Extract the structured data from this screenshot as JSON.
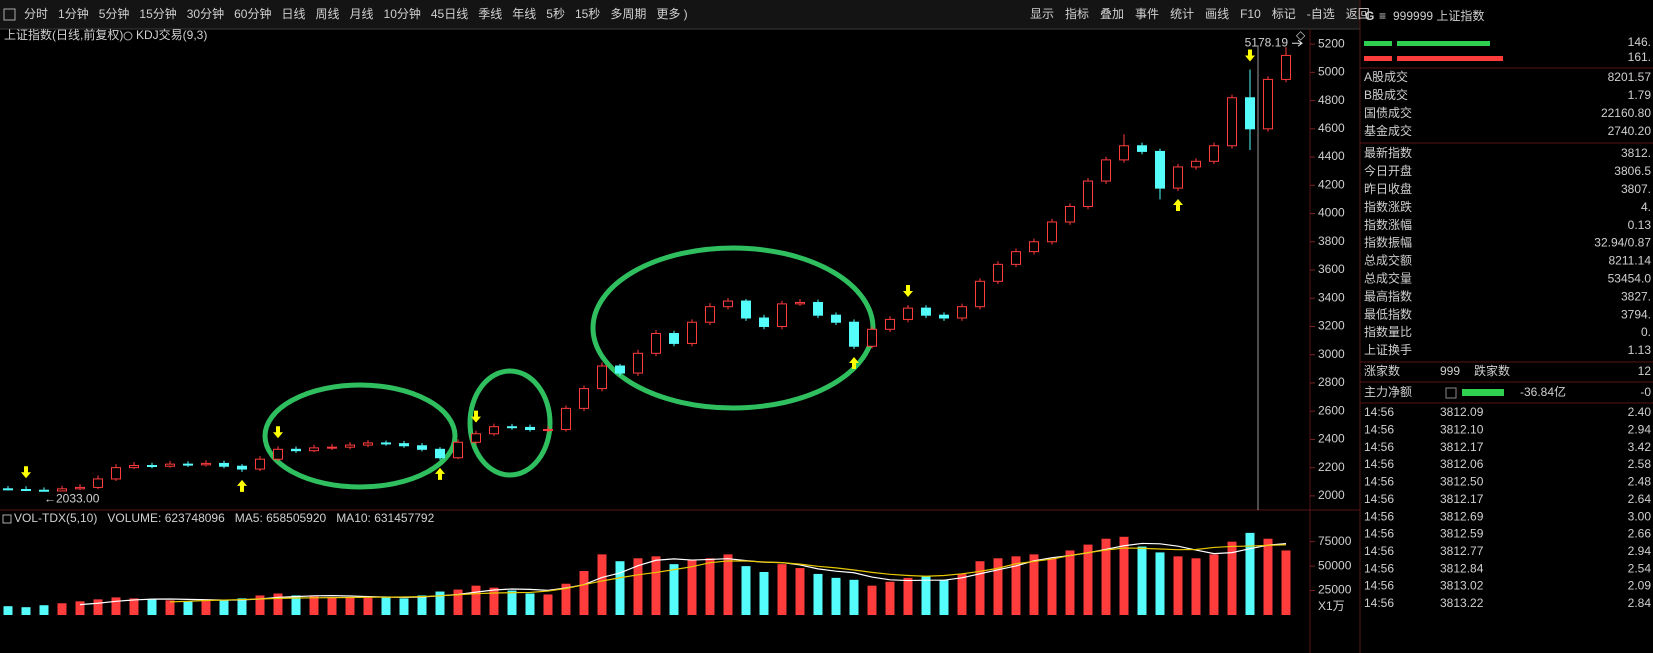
{
  "toolbar": {
    "left": [
      "分时",
      "1分钟",
      "5分钟",
      "15分钟",
      "30分钟",
      "60分钟",
      "日线",
      "周线",
      "月线",
      "10分钟",
      "45日线",
      "季线",
      "年线",
      "5秒",
      "15秒",
      "多周期",
      "更多 )"
    ],
    "active": 6,
    "right": [
      "显示",
      "指标",
      "叠加",
      "事件",
      "统计",
      "画线",
      "F10",
      "标记",
      "-自选",
      "返回"
    ]
  },
  "chart_data": {
    "type": "candlestick",
    "title": "上证指数(日线,前复权)",
    "indicator": "KDJ交易(9,3)",
    "open": [
      2050,
      2045,
      2040,
      2035,
      2050,
      2060,
      2120,
      2200,
      2215,
      2210,
      2225,
      2220,
      2230,
      2210,
      2190,
      2260,
      2330,
      2320,
      2340,
      2345,
      2360,
      2375,
      2370,
      2355,
      2330,
      2270,
      2380,
      2440,
      2490,
      2485,
      2470,
      2470,
      2620,
      2760,
      2920,
      2870,
      3010,
      3150,
      3080,
      3230,
      3340,
      3380,
      3260,
      3200,
      3360,
      3370,
      3280,
      3230,
      3060,
      3180,
      3250,
      3330,
      3280,
      3260,
      3340,
      3520,
      3640,
      3730,
      3800,
      3940,
      4050,
      4230,
      4380,
      4480,
      4440,
      4180,
      4330,
      4370,
      4480,
      4820,
      4600,
      4950
    ],
    "high": [
      2070,
      2068,
      2060,
      2072,
      2082,
      2145,
      2225,
      2240,
      2235,
      2248,
      2245,
      2252,
      2250,
      2225,
      2282,
      2352,
      2350,
      2362,
      2368,
      2382,
      2396,
      2392,
      2390,
      2375,
      2345,
      2400,
      2462,
      2512,
      2510,
      2505,
      2495,
      2640,
      2782,
      2945,
      2935,
      3035,
      3175,
      3170,
      3250,
      3365,
      3402,
      3395,
      3282,
      3382,
      3394,
      3390,
      3300,
      3250,
      3200,
      3272,
      3352,
      3350,
      3300,
      3362,
      3542,
      3662,
      3752,
      3822,
      3962,
      4072,
      4252,
      4402,
      4562,
      4502,
      4460,
      4352,
      4392,
      4502,
      4842,
      5020,
      4972,
      5178.19
    ],
    "low": [
      2038,
      2036,
      2033,
      2038,
      2042,
      2048,
      2105,
      2190,
      2195,
      2200,
      2205,
      2208,
      2195,
      2170,
      2175,
      2245,
      2305,
      2310,
      2325,
      2330,
      2345,
      2355,
      2340,
      2315,
      2255,
      2260,
      2365,
      2425,
      2468,
      2455,
      2450,
      2455,
      2600,
      2740,
      2850,
      2850,
      2990,
      3060,
      3060,
      3210,
      3320,
      3240,
      3180,
      3180,
      3345,
      3260,
      3210,
      3040,
      3045,
      3160,
      3230,
      3260,
      3240,
      3240,
      3320,
      3500,
      3620,
      3710,
      3780,
      3920,
      4030,
      4210,
      4360,
      4420,
      4100,
      4160,
      4310,
      4350,
      4460,
      4450,
      4580,
      4930
    ],
    "close": [
      2045,
      2040,
      2035,
      2050,
      2060,
      2120,
      2200,
      2215,
      2210,
      2225,
      2220,
      2230,
      2210,
      2190,
      2260,
      2330,
      2320,
      2340,
      2345,
      2360,
      2375,
      2370,
      2355,
      2330,
      2270,
      2380,
      2440,
      2490,
      2485,
      2470,
      2470,
      2620,
      2760,
      2920,
      2870,
      3010,
      3150,
      3080,
      3230,
      3340,
      3380,
      3260,
      3200,
      3360,
      3370,
      3280,
      3230,
      3060,
      3180,
      3250,
      3330,
      3280,
      3260,
      3340,
      3520,
      3640,
      3730,
      3800,
      3940,
      4050,
      4230,
      4380,
      4480,
      4440,
      4180,
      4330,
      4370,
      4480,
      4820,
      4600,
      4950,
      5120
    ],
    "up_color": "#ff3c3c",
    "down_color": "#54fcfc",
    "ylim": [
      1900,
      5300
    ],
    "yticks": [
      2000,
      2200,
      2400,
      2600,
      2800,
      3000,
      3200,
      3400,
      3600,
      3800,
      4000,
      4200,
      4400,
      4600,
      4800,
      5000,
      5200
    ],
    "max_label": "5178.19",
    "min_label": "←2033.00",
    "signals": {
      "color": "#ffff00",
      "buy": [
        13,
        24,
        47,
        65
      ],
      "sell": [
        1,
        15,
        26,
        50,
        69
      ]
    },
    "volume": {
      "title": "VOL-TDX(5,10)",
      "volume_label": "VOLUME: 623748096",
      "ma5_label": "MA5: 658505920",
      "ma10_label": "MA10: 631457792",
      "unit": "X1万",
      "values": [
        9000,
        8000,
        10000,
        12000,
        14000,
        16000,
        18000,
        17000,
        16000,
        15000,
        14000,
        16000,
        15000,
        17000,
        20000,
        22000,
        20000,
        19000,
        18000,
        18000,
        19000,
        18000,
        17000,
        20000,
        24000,
        26000,
        30000,
        28000,
        25000,
        22000,
        21000,
        32000,
        45000,
        62000,
        55000,
        58000,
        60000,
        52000,
        56000,
        58000,
        62000,
        50000,
        44000,
        52000,
        48000,
        42000,
        38000,
        36000,
        30000,
        34000,
        38000,
        40000,
        36000,
        42000,
        55000,
        58000,
        60000,
        62000,
        58000,
        66000,
        72000,
        78000,
        80000,
        70000,
        64000,
        60000,
        58000,
        62000,
        75000,
        84000,
        78000,
        66000
      ],
      "ylim": [
        0,
        90000
      ],
      "yticks": [
        25000,
        50000,
        75000
      ],
      "ma5": {
        "color": "#ffffff",
        "values": [
          null,
          null,
          null,
          null,
          10600,
          12000,
          14000,
          15400,
          16200,
          16400,
          16000,
          15600,
          15200,
          15400,
          16400,
          18000,
          18800,
          19600,
          19800,
          19400,
          18800,
          18400,
          18000,
          18400,
          19600,
          21000,
          23400,
          25600,
          26600,
          26200,
          25200,
          27600,
          31000,
          38400,
          43000,
          50400,
          56000,
          57400,
          56200,
          56800,
          57600,
          55600,
          54000,
          53600,
          51200,
          47200,
          44800,
          43200,
          38800,
          36000,
          35200,
          35600,
          35600,
          38000,
          42200,
          46200,
          50200,
          55400,
          58600,
          60800,
          63600,
          67200,
          70800,
          73200,
          72800,
          70400,
          66400,
          62800,
          63800,
          67800,
          71400,
          73000
        ]
      },
      "ma10": {
        "color": "#e8c800",
        "values": [
          null,
          null,
          null,
          null,
          null,
          null,
          null,
          null,
          null,
          13400,
          14000,
          14800,
          15300,
          15800,
          16400,
          17000,
          17400,
          17600,
          17800,
          17900,
          18100,
          18300,
          18400,
          18800,
          19600,
          20700,
          21800,
          22500,
          22800,
          23100,
          24500,
          27100,
          31000,
          34800,
          38100,
          41100,
          43500,
          46400,
          49400,
          53500,
          55300,
          55200,
          54200,
          53600,
          52000,
          49800,
          48200,
          46000,
          43600,
          41600,
          40400,
          39600,
          40400,
          42100,
          44600,
          47800,
          52400,
          54800,
          57200,
          60800,
          63800,
          66400,
          68500,
          68200,
          67500,
          66800,
          67000,
          69100,
          70100,
          70500,
          71200,
          71800
        ]
      }
    }
  },
  "panel": {
    "mark": "G",
    "menu": "≡",
    "title": "999999 上证指数",
    "bars": [
      "146.",
      "161."
    ],
    "stats": [
      {
        "label": "A股成交",
        "value": "8201.57",
        "color": "#e8c800"
      },
      {
        "label": "B股成交",
        "value": "1.79",
        "color": "#e8c800"
      },
      {
        "label": "国债成交",
        "value": "22160.80",
        "color": "#e8c800"
      },
      {
        "label": "基金成交",
        "value": "2740.20",
        "color": "#e8c800"
      },
      {
        "label": "最新指数",
        "value": "3812.",
        "color": "#ff3c3c"
      },
      {
        "label": "今日开盘",
        "value": "3806.5",
        "color": "#3cd33c"
      },
      {
        "label": "昨日收盘",
        "value": "3807.",
        "color": "#e0e0e0"
      },
      {
        "label": "指数涨跌",
        "value": "4.",
        "color": "#ff3c3c"
      },
      {
        "label": "指数涨幅",
        "value": "0.13",
        "color": "#ff3c3c"
      },
      {
        "label": "指数振幅",
        "value": "32.94/0.87",
        "color": "#e0e0e0"
      },
      {
        "label": "总成交额",
        "value": "8211.14",
        "color": "#e8c800"
      },
      {
        "label": "总成交量",
        "value": "53454.0",
        "color": "#e8c800"
      },
      {
        "label": "最高指数",
        "value": "3827.",
        "color": "#ff3c3c"
      },
      {
        "label": "最低指数",
        "value": "3794.",
        "color": "#3cd33c"
      },
      {
        "label": "指数量比",
        "value": "0.",
        "color": "#e8c800"
      },
      {
        "label": "上证换手",
        "value": "1.13",
        "color": "#e0e0e0"
      }
    ],
    "advance": {
      "label": "涨家数",
      "value": "999",
      "label2": "跌家数",
      "value2": "12"
    },
    "flow": {
      "label": "主力净额",
      "value": "-36.84亿",
      "value2": "-0"
    },
    "trades": [
      {
        "time": "14:56",
        "price": "3812.09",
        "vol": "2.40"
      },
      {
        "time": "14:56",
        "price": "3812.10",
        "vol": "2.94"
      },
      {
        "time": "14:56",
        "price": "3812.17",
        "vol": "3.42"
      },
      {
        "time": "14:56",
        "price": "3812.06",
        "vol": "2.58"
      },
      {
        "time": "14:56",
        "price": "3812.50",
        "vol": "2.48"
      },
      {
        "time": "14:56",
        "price": "3812.17",
        "vol": "2.64"
      },
      {
        "time": "14:56",
        "price": "3812.69",
        "vol": "3.00"
      },
      {
        "time": "14:56",
        "price": "3812.59",
        "vol": "2.66"
      },
      {
        "time": "14:56",
        "price": "3812.77",
        "vol": "2.94"
      },
      {
        "time": "14:56",
        "price": "3812.84",
        "vol": "2.54"
      },
      {
        "time": "14:56",
        "price": "3813.02",
        "vol": "2.09"
      },
      {
        "time": "14:56",
        "price": "3813.22",
        "vol": "2.84"
      }
    ]
  }
}
